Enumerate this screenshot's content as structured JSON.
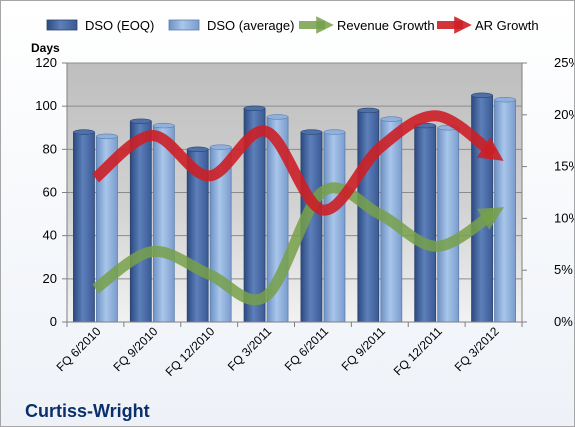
{
  "chart_data": {
    "type": "bar",
    "title": "Curtiss-Wright",
    "ylabel": "Days",
    "ylim": [
      0,
      120
    ],
    "yticks": [
      0,
      20,
      40,
      60,
      80,
      100,
      120
    ],
    "y2lim": [
      0,
      25
    ],
    "y2ticks": [
      "0%",
      "5%",
      "10%",
      "15%",
      "20%",
      "25%"
    ],
    "y2tick_values": [
      0,
      5,
      10,
      15,
      20,
      25
    ],
    "grid": true,
    "legend_position": "top",
    "categories": [
      "FQ 6/2010",
      "FQ 9/2010",
      "FQ 12/2010",
      "FQ 3/2011",
      "FQ 6/2011",
      "FQ 9/2011",
      "FQ 12/2011",
      "FQ 3/2012"
    ],
    "series": [
      {
        "name": "DSO (EOQ)",
        "type": "bar",
        "axis": "left",
        "color": "#4f6fa8",
        "values": [
          88,
          93,
          80,
          99,
          88,
          98,
          91,
          105
        ]
      },
      {
        "name": "DSO (average)",
        "type": "bar",
        "axis": "left",
        "color": "#8fb1dc",
        "values": [
          86,
          91,
          81,
          95,
          88,
          94,
          90,
          103
        ]
      },
      {
        "name": "Revenue Growth",
        "type": "line",
        "axis": "right",
        "unit": "%",
        "color": "#77a04a",
        "values": [
          3.2,
          6.8,
          4.6,
          2.5,
          12.6,
          10.4,
          7.3,
          10.5
        ]
      },
      {
        "name": "AR Growth",
        "type": "line",
        "axis": "right",
        "unit": "%",
        "color": "#cc1f26",
        "values": [
          13.9,
          18.0,
          14.1,
          18.4,
          10.8,
          16.8,
          19.9,
          16.2
        ]
      }
    ]
  }
}
